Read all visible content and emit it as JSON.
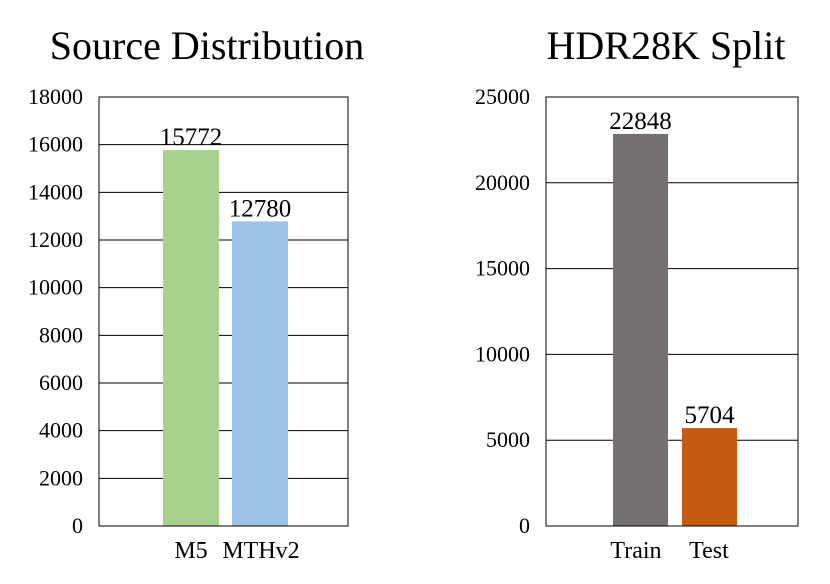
{
  "chart_data": [
    {
      "type": "bar",
      "title": "Source Distribution",
      "categories": [
        "M5",
        "MTHv2"
      ],
      "values": [
        15772,
        12780
      ],
      "data_labels": [
        "15772",
        "12780"
      ],
      "colors": [
        "#a9d18e",
        "#9dc3e6"
      ],
      "ylim": [
        0,
        18000
      ],
      "yticks": [
        0,
        2000,
        4000,
        6000,
        8000,
        10000,
        12000,
        14000,
        16000,
        18000
      ],
      "ytick_labels": [
        "0",
        "2000",
        "4000",
        "6000",
        "8000",
        "10000",
        "12000",
        "14000",
        "16000",
        "18000"
      ],
      "grid": true,
      "legend": "none"
    },
    {
      "type": "bar",
      "title": "HDR28K Split",
      "categories": [
        "Train",
        "Test"
      ],
      "values": [
        22848,
        5704
      ],
      "data_labels": [
        "22848",
        "5704"
      ],
      "colors": [
        "#767171",
        "#c55a11"
      ],
      "ylim": [
        0,
        25000
      ],
      "yticks": [
        0,
        5000,
        10000,
        15000,
        20000,
        25000
      ],
      "ytick_labels": [
        "0",
        "5000",
        "10000",
        "15000",
        "20000",
        "25000"
      ],
      "grid": true,
      "legend": "none"
    }
  ]
}
